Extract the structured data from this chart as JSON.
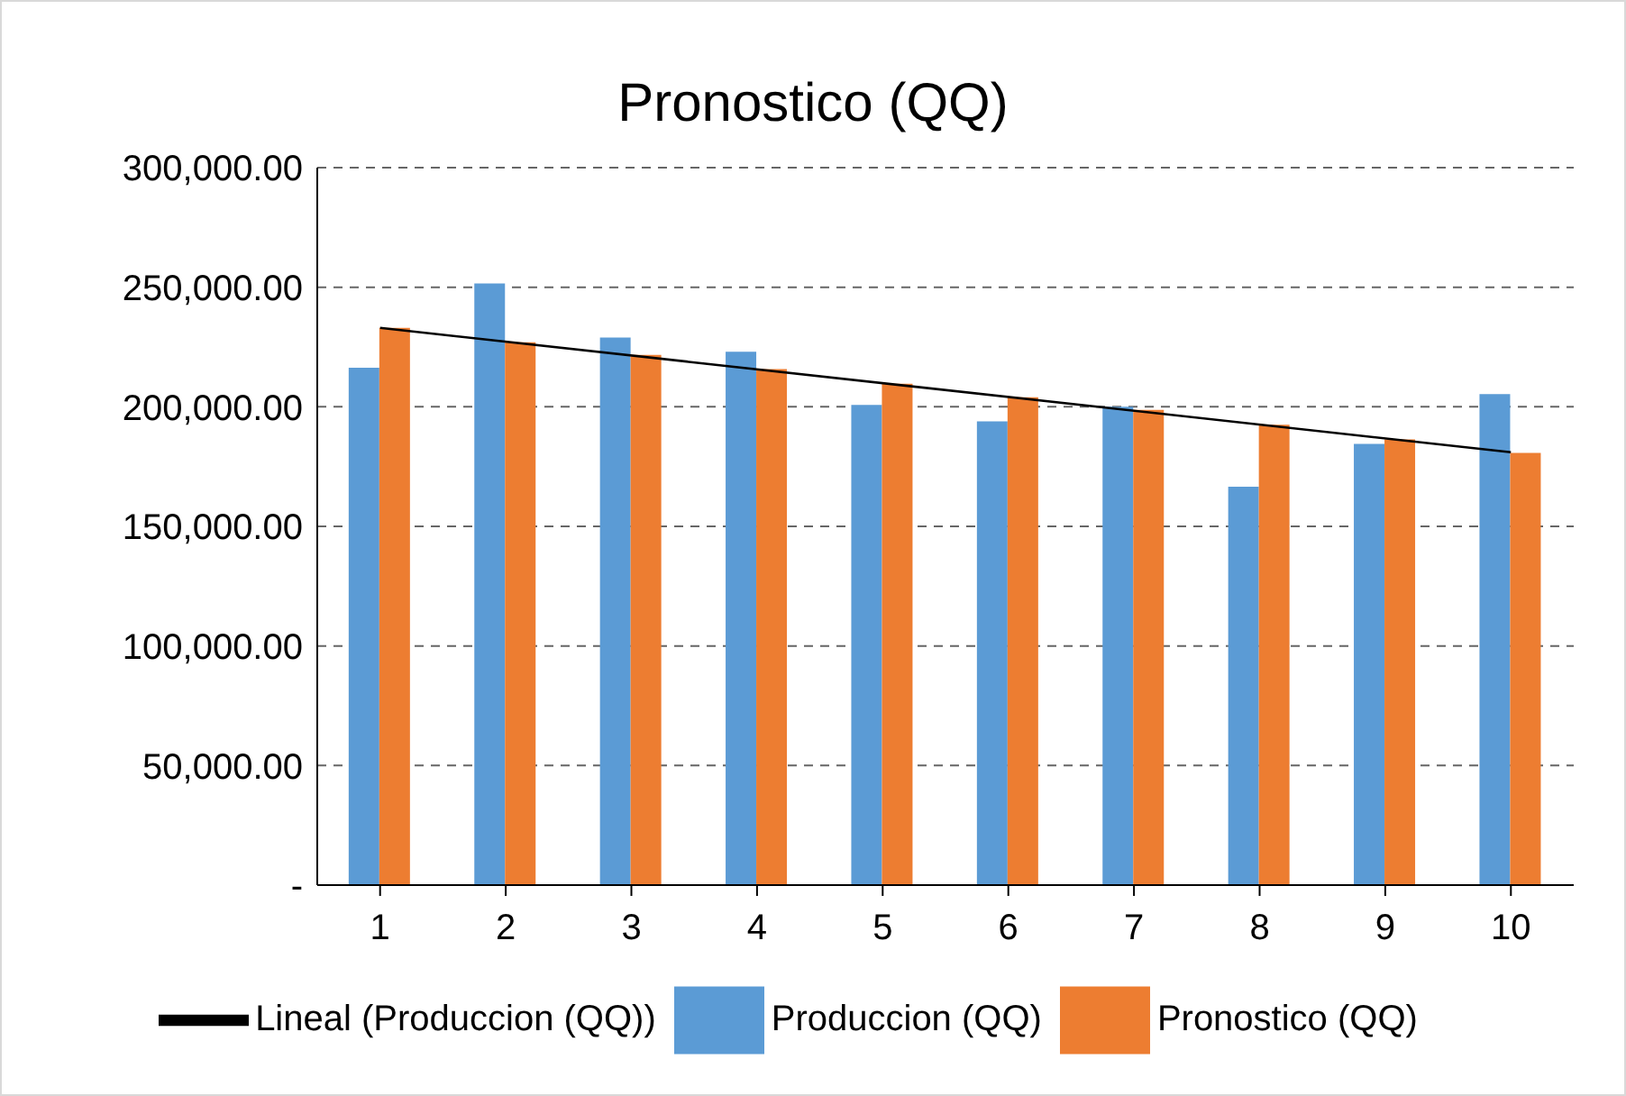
{
  "chart_data": {
    "type": "bar",
    "title": "Pronostico (QQ)",
    "categories": [
      "1",
      "2",
      "3",
      "4",
      "5",
      "6",
      "7",
      "8",
      "9",
      "10"
    ],
    "series": [
      {
        "name": "Produccion (QQ)",
        "color": "#5b9bd5",
        "values": [
          216300,
          251600,
          229000,
          223000,
          200800,
          193900,
          200000,
          166600,
          184500,
          205300
        ]
      },
      {
        "name": "Pronostico (QQ)",
        "color": "#ed7d31",
        "values": [
          233000,
          227000,
          221700,
          215800,
          209600,
          204000,
          198700,
          192500,
          186400,
          180700
        ]
      },
      {
        "name": "Lineal (Produccion (QQ))",
        "type": "line",
        "color": "#000000",
        "values": [
          233000,
          null,
          null,
          null,
          null,
          null,
          null,
          null,
          null,
          181000
        ]
      }
    ],
    "ylim": [
      0,
      300000
    ],
    "yticks": [
      {
        "value": 0,
        "label": "-"
      },
      {
        "value": 50000,
        "label": "50,000.00"
      },
      {
        "value": 100000,
        "label": "100,000.00"
      },
      {
        "value": 150000,
        "label": "150,000.00"
      },
      {
        "value": 200000,
        "label": "200,000.00"
      },
      {
        "value": 250000,
        "label": "250,000.00"
      },
      {
        "value": 300000,
        "label": "300,000.00"
      }
    ],
    "grid": "y",
    "legend": "bottom",
    "marker": "none",
    "line_style": "solid"
  }
}
